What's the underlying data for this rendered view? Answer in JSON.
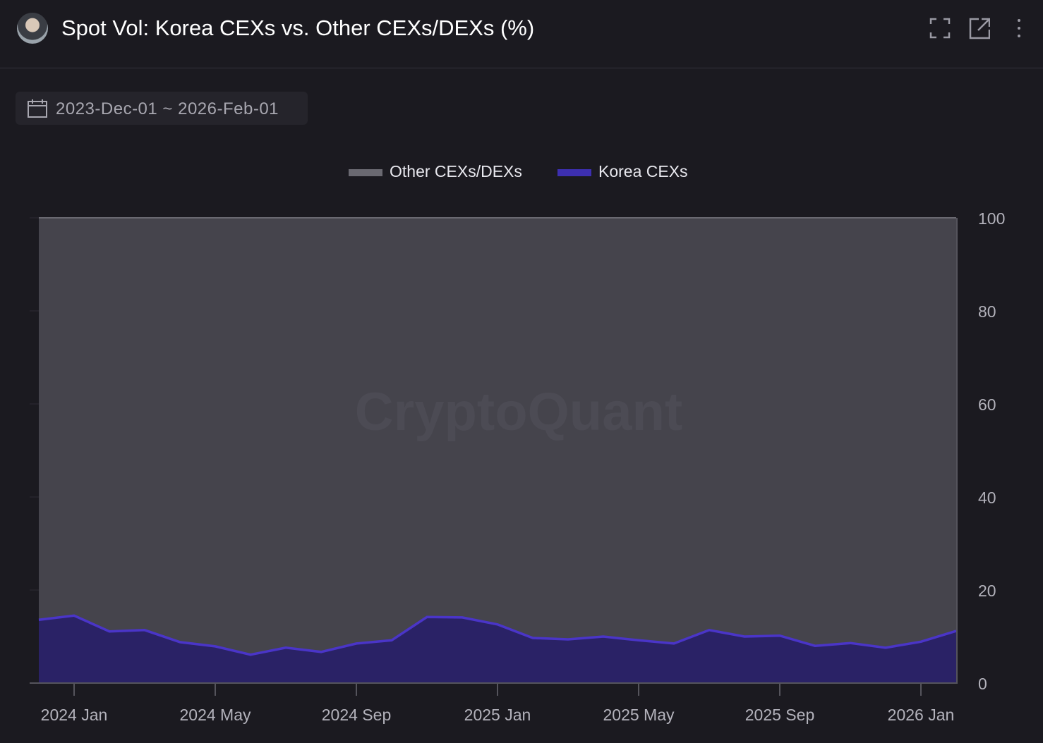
{
  "header": {
    "title": "Spot Vol: Korea CEXs vs. Other CEXs/DEXs (%)",
    "icons": [
      "fullscreen-icon",
      "external-link-icon",
      "more-vert-icon"
    ]
  },
  "date_range": {
    "label": "2023-Dec-01 ~ 2026-Feb-01",
    "icon": "calendar-icon"
  },
  "watermark": "CryptoQuant",
  "colors": {
    "other": "#45444c",
    "korea_fill": "#2a2266",
    "korea_line": "#4a35c8",
    "background": "#1b1a20"
  },
  "chart_data": {
    "type": "area",
    "stacked": true,
    "legend_position": "top",
    "grid": true,
    "ylim": [
      0,
      100
    ],
    "y_ticks": [
      "0",
      "20",
      "40",
      "60",
      "80",
      "100"
    ],
    "y_axis_side": "right",
    "x_ticks": [
      "2024 Jan",
      "2024 May",
      "2024 Sep",
      "2025 Jan",
      "2025 May",
      "2025 Sep",
      "2026 Jan"
    ],
    "x": [
      "2023-12",
      "2024-01",
      "2024-02",
      "2024-03",
      "2024-04",
      "2024-05",
      "2024-06",
      "2024-07",
      "2024-08",
      "2024-09",
      "2024-10",
      "2024-11",
      "2024-12",
      "2025-01",
      "2025-02",
      "2025-03",
      "2025-04",
      "2025-05",
      "2025-06",
      "2025-07",
      "2025-08",
      "2025-09",
      "2025-10",
      "2025-11",
      "2025-12",
      "2026-01",
      "2026-02"
    ],
    "series": [
      {
        "name": "Other CEXs/DEXs",
        "values": [
          86.4,
          85.5,
          88.9,
          88.6,
          91.2,
          92.1,
          93.9,
          92.4,
          93.3,
          91.5,
          90.8,
          85.8,
          85.9,
          87.4,
          90.3,
          90.6,
          90.0,
          90.8,
          91.5,
          88.6,
          90.0,
          89.8,
          92.0,
          91.4,
          92.4,
          91.1,
          88.8
        ]
      },
      {
        "name": "Korea CEXs",
        "values": [
          13.6,
          14.5,
          11.1,
          11.4,
          8.8,
          7.9,
          6.1,
          7.6,
          6.7,
          8.5,
          9.2,
          14.2,
          14.1,
          12.6,
          9.7,
          9.4,
          10.0,
          9.2,
          8.5,
          11.4,
          10.0,
          10.2,
          8.0,
          8.6,
          7.6,
          8.9,
          11.2
        ]
      }
    ]
  }
}
